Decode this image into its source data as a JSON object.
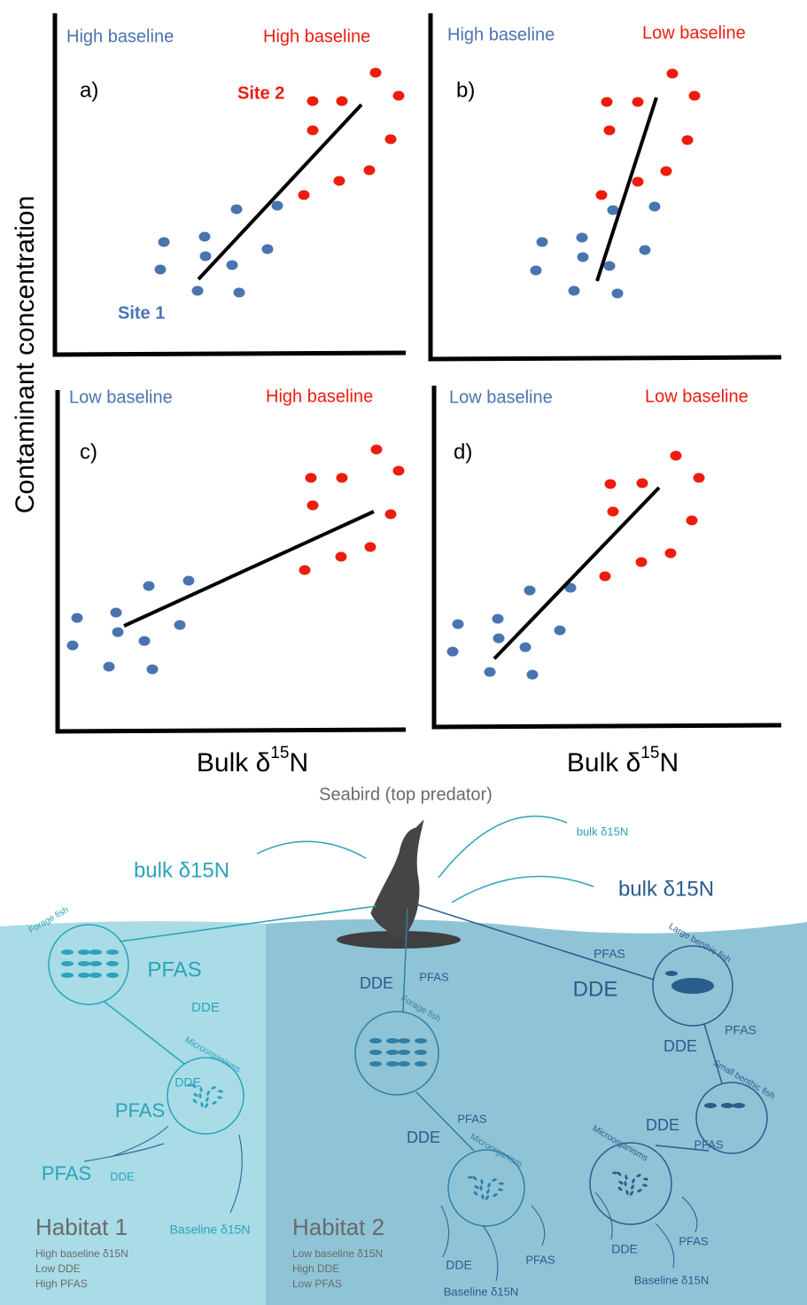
{
  "y_axis_title": "Contaminant concentration",
  "x_axis_title": {
    "text": "Bulk δ",
    "superscript": "15",
    "suffix": "N"
  },
  "panels": [
    {
      "label": "a)",
      "site_1_baseline": "High baseline",
      "site_2_baseline": "High baseline",
      "site_1": "Site 1",
      "site_2": "Site 2"
    },
    {
      "label": "b)",
      "site_1_baseline": "High baseline",
      "site_2_baseline": "Low baseline"
    },
    {
      "label": "c)",
      "site_1_baseline": "Low baseline",
      "site_2_baseline": "High baseline"
    },
    {
      "label": "d)",
      "site_1_baseline": "Low baseline",
      "site_2_baseline": "Low baseline"
    }
  ],
  "diagram": {
    "predator": "Seabird (top predator)",
    "predator_isotopes": [
      "bulk δ15N",
      "bulk δ15N",
      "bulk δ15N"
    ],
    "habitats": [
      {
        "title": "Habitat 1",
        "notes": [
          "High baseline δ15N",
          "Low DDE",
          "High PFAS"
        ],
        "nodes": [
          "Forage fish",
          "Microorganisms"
        ],
        "labels": [
          "PFAS",
          "DDE",
          "DDE",
          "PFAS",
          "PFAS",
          "DDE",
          "Baseline δ15N"
        ]
      },
      {
        "title": "Habitat 2",
        "notes": [
          "Low baseline δ15N",
          "High DDE",
          "Low PFAS"
        ],
        "nodes": [
          "Forage fish",
          "Microorganism",
          "Large benthic fish",
          "Small benthic fish",
          "Microorganisms"
        ],
        "labels": [
          "DDE",
          "PFAS",
          "PFAS",
          "DDE",
          "DDE",
          "PFAS",
          "Baseline δ15N",
          "PFAS",
          "DDE",
          "PFAS",
          "DDE",
          "DDE",
          "PFAS",
          "DDE",
          "PFAS",
          "Baseline δ15N"
        ]
      }
    ]
  }
}
